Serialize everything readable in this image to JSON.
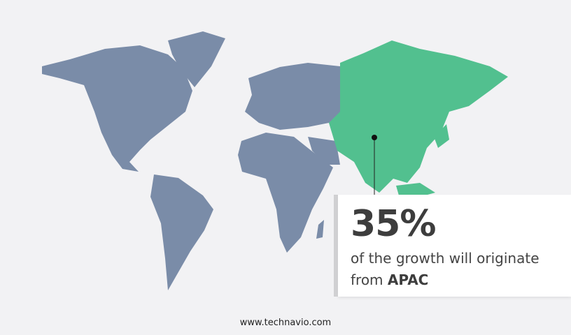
{
  "map": {
    "highlight_region": "APAC",
    "colors": {
      "background": "#f2f2f4",
      "land": "#7a8ca8",
      "highlight": "#52c08f"
    }
  },
  "callout": {
    "percentage": "35%",
    "text": "of the growth will originate",
    "text_line2_prefix": "from",
    "region": "APAC"
  },
  "footer": {
    "website": "www.technavio.com"
  }
}
